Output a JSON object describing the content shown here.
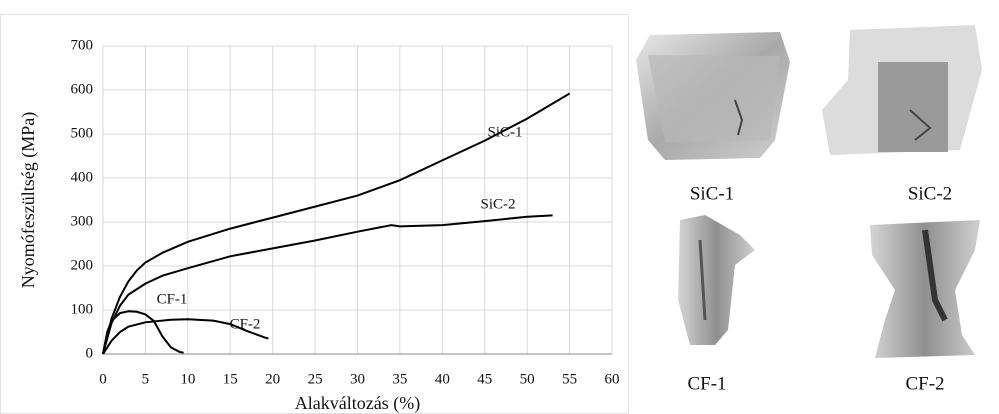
{
  "chart_data": {
    "type": "line",
    "x_label": "Alakváltozás (%)",
    "y_label": "Nyomófeszültség (MPa)",
    "xlim": [
      0,
      60
    ],
    "xticks": [
      0,
      5,
      10,
      15,
      20,
      25,
      30,
      35,
      40,
      45,
      50,
      55,
      60
    ],
    "ylim": [
      0,
      700
    ],
    "yticks": [
      0,
      100,
      200,
      300,
      400,
      500,
      600,
      700
    ],
    "grid": true,
    "series": [
      {
        "name": "SiC-1",
        "color": "#000000",
        "x": [
          0,
          0.5,
          1,
          2,
          3,
          4,
          5,
          7,
          10,
          15,
          20,
          25,
          30,
          35,
          40,
          45,
          50,
          55
        ],
        "values": [
          0,
          40,
          80,
          130,
          165,
          190,
          208,
          230,
          255,
          285,
          310,
          335,
          360,
          395,
          440,
          485,
          535,
          592
        ]
      },
      {
        "name": "SiC-2",
        "color": "#000000",
        "x": [
          0,
          0.5,
          1,
          2,
          3,
          5,
          7,
          10,
          15,
          20,
          25,
          30,
          34,
          35,
          40,
          45,
          50,
          53
        ],
        "values": [
          0,
          35,
          70,
          110,
          135,
          160,
          178,
          195,
          222,
          240,
          258,
          278,
          293,
          290,
          293,
          302,
          312,
          315
        ]
      },
      {
        "name": "CF-1",
        "color": "#000000",
        "x": [
          0,
          0.5,
          1,
          2,
          3,
          4,
          5,
          6,
          7,
          8,
          9,
          9.5
        ],
        "values": [
          0,
          50,
          75,
          93,
          97,
          96,
          90,
          75,
          40,
          15,
          5,
          3
        ]
      },
      {
        "name": "CF-2",
        "color": "#000000",
        "x": [
          0,
          1,
          2,
          3,
          5,
          8,
          10,
          13,
          15,
          17,
          19,
          19.5
        ],
        "values": [
          0,
          30,
          50,
          62,
          72,
          78,
          79,
          76,
          68,
          52,
          38,
          35
        ]
      }
    ]
  },
  "photos": [
    {
      "caption": "SiC-1"
    },
    {
      "caption": "SiC-2"
    },
    {
      "caption": "CF-1"
    },
    {
      "caption": "CF-2"
    }
  ]
}
